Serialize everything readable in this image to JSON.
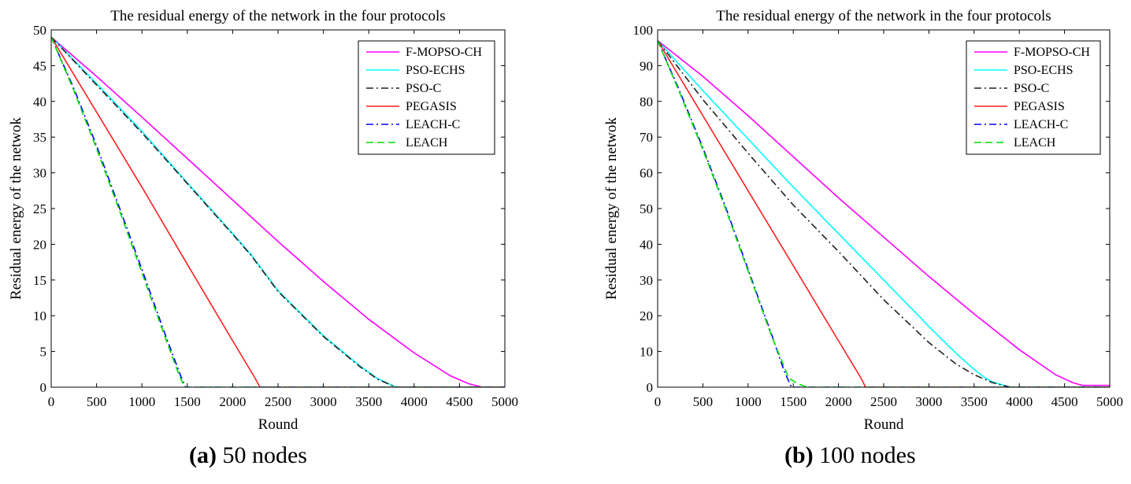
{
  "charts": [
    {
      "caption": {
        "letter": "(a)",
        "text": " 50 nodes"
      },
      "chart_data": {
        "type": "line",
        "title": "The residual energy of the network in the four protocols",
        "xlabel": "Round",
        "ylabel": "Residual energy of the netwok",
        "xlim": [
          0,
          5000
        ],
        "ylim": [
          0,
          50
        ],
        "xticks": [
          0,
          500,
          1000,
          1500,
          2000,
          2500,
          3000,
          3500,
          4000,
          4500,
          5000
        ],
        "yticks": [
          0,
          5,
          10,
          15,
          20,
          25,
          30,
          35,
          40,
          45,
          50
        ],
        "legend_position": "top-right",
        "series": [
          {
            "name": "F-MOPSO-CH",
            "color": "#ff00ff",
            "dash": "solid",
            "x": [
              0,
              500,
              1000,
              1500,
              2000,
              2500,
              3000,
              3500,
              4000,
              4400,
              4600,
              4750,
              4800,
              5000
            ],
            "y": [
              49,
              43.5,
              37.8,
              32,
              26.2,
              20.4,
              14.8,
              9.5,
              4.8,
              1.6,
              0.5,
              0,
              0,
              0
            ]
          },
          {
            "name": "PSO-ECHS",
            "color": "#00ffff",
            "dash": "solid",
            "x": [
              0,
              500,
              1000,
              1500,
              2000,
              2200,
              2500,
              3000,
              3400,
              3600,
              3800,
              5000
            ],
            "y": [
              49,
              42.5,
              35.8,
              28.6,
              21.5,
              18.6,
              13.5,
              7.2,
              3.0,
              1.2,
              0,
              0
            ]
          },
          {
            "name": "PSO-C",
            "color": "#222222",
            "dash": "dashdot",
            "x": [
              0,
              500,
              1000,
              1500,
              2000,
              2200,
              2500,
              3000,
              3400,
              3600,
              3800,
              5000
            ],
            "y": [
              49,
              42.3,
              35.6,
              28.5,
              21.4,
              18.5,
              13.4,
              7.1,
              2.9,
              1.1,
              0,
              0
            ]
          },
          {
            "name": "PEGASIS",
            "color": "#ff2020",
            "dash": "solid",
            "x": [
              0,
              500,
              1000,
              1500,
              2000,
              2250,
              2300,
              5000
            ],
            "y": [
              49,
              38.5,
              28.0,
              17.2,
              6.5,
              1.2,
              0,
              0
            ]
          },
          {
            "name": "LEACH-C",
            "color": "#0000ff",
            "dash": "dashdot",
            "x": [
              0,
              250,
              500,
              750,
              1000,
              1250,
              1430,
              1480,
              5000
            ],
            "y": [
              49,
              41.8,
              33.8,
              25.2,
              16.5,
              7.6,
              1.5,
              0,
              0
            ]
          },
          {
            "name": "LEACH",
            "color": "#00dd00",
            "dash": "dashed",
            "x": [
              0,
              250,
              500,
              750,
              1000,
              1250,
              1400,
              1470,
              5000
            ],
            "y": [
              49,
              41.5,
              33.4,
              24.8,
              16.0,
              7.2,
              2.0,
              0,
              0
            ]
          }
        ]
      }
    },
    {
      "caption": {
        "letter": "(b)",
        "text": " 100 nodes"
      },
      "chart_data": {
        "type": "line",
        "title": "The residual energy of the network in the four protocols",
        "xlabel": "Round",
        "ylabel": "Residual energy of the netwok",
        "xlim": [
          0,
          5000
        ],
        "ylim": [
          0,
          100
        ],
        "xticks": [
          0,
          500,
          1000,
          1500,
          2000,
          2500,
          3000,
          3500,
          4000,
          4500,
          5000
        ],
        "yticks": [
          0,
          10,
          20,
          30,
          40,
          50,
          60,
          70,
          80,
          90,
          100
        ],
        "legend_position": "top-right",
        "series": [
          {
            "name": "F-MOPSO-CH",
            "color": "#ff00ff",
            "dash": "solid",
            "x": [
              0,
              500,
              1000,
              1500,
              2000,
              2500,
              3000,
              3500,
              4000,
              4400,
              4600,
              4700,
              4750,
              5000
            ],
            "y": [
              97,
              87,
              76,
              64.5,
              53,
              42,
              31,
              20.5,
              10.5,
              3.5,
              1.2,
              0.5,
              0.5,
              0.5
            ]
          },
          {
            "name": "PSO-ECHS",
            "color": "#00ffff",
            "dash": "solid",
            "x": [
              0,
              500,
              1000,
              1500,
              2000,
              2500,
              3000,
              3300,
              3500,
              3600,
              3700,
              3900,
              5000
            ],
            "y": [
              97,
              83,
              69.5,
              56,
              43,
              30,
              17,
              9.5,
              5.0,
              3.0,
              1.5,
              0,
              0
            ]
          },
          {
            "name": "PSO-C",
            "color": "#222222",
            "dash": "dashdot",
            "x": [
              0,
              500,
              1000,
              1500,
              2000,
              2500,
              3000,
              3300,
              3500,
              3700,
              3900,
              5000
            ],
            "y": [
              97,
              80.5,
              65.5,
              51,
              38,
              24.5,
              12.5,
              6.5,
              3.5,
              1.3,
              0,
              0
            ]
          },
          {
            "name": "PEGASIS",
            "color": "#ff2020",
            "dash": "solid",
            "x": [
              0,
              500,
              1000,
              1500,
              2000,
              2250,
              2300,
              5000
            ],
            "y": [
              97,
              76,
              55,
              34,
              13,
              2.5,
              0,
              0
            ]
          },
          {
            "name": "LEACH-C",
            "color": "#0000ff",
            "dash": "dashdot",
            "x": [
              0,
              250,
              500,
              750,
              1000,
              1250,
              1400,
              1480,
              5000
            ],
            "y": [
              97,
              82.5,
              67,
              50.5,
              33,
              15.5,
              4.5,
              0,
              0
            ]
          },
          {
            "name": "LEACH",
            "color": "#00dd00",
            "dash": "dashed",
            "x": [
              0,
              250,
              500,
              750,
              1000,
              1250,
              1450,
              1550,
              1650,
              5000
            ],
            "y": [
              97,
              82,
              66.5,
              50,
              32.5,
              15,
              2.5,
              1.0,
              0,
              0
            ]
          }
        ]
      }
    }
  ]
}
